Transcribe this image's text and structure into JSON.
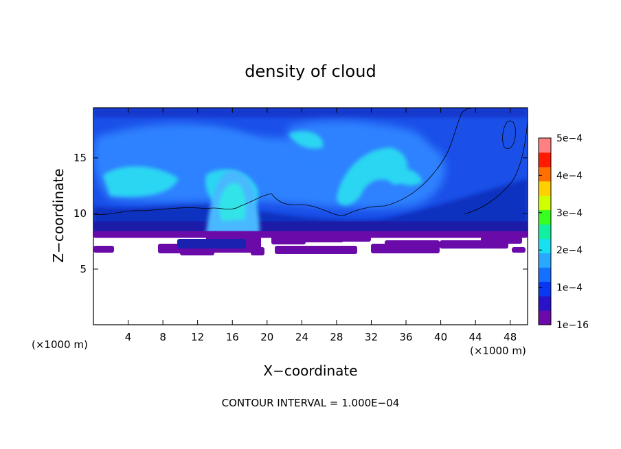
{
  "chart_data": {
    "type": "heatmap",
    "title": "density of cloud",
    "xlabel": "X−coordinate",
    "ylabel": "Z−coordinate",
    "x_unit": "(×1000 m)",
    "y_unit": "(×1000 m)",
    "xlim": [
      0,
      50
    ],
    "ylim": [
      0,
      19.5
    ],
    "x_ticks": [
      4,
      8,
      12,
      16,
      20,
      24,
      28,
      32,
      36,
      40,
      44,
      48
    ],
    "y_ticks": [
      5,
      10,
      15
    ],
    "colorbar": {
      "min_label": "1e−16",
      "tick_values": [
        0.0001,
        0.0002,
        0.0003,
        0.0004,
        0.0005
      ],
      "tick_labels": [
        "1e−4",
        "2e−4",
        "3e−4",
        "4e−4",
        "5e−4"
      ],
      "range": [
        0,
        0.0005
      ],
      "colors": [
        "#6a0aa8",
        "#2a12c8",
        "#0a38f0",
        "#1670ff",
        "#28a8ff",
        "#18e0f0",
        "#10f0a0",
        "#38ff20",
        "#d0ff00",
        "#ffd000",
        "#ff7000",
        "#ff1a00",
        "#ff8080"
      ]
    },
    "contour_interval": "CONTOUR INTERVAL = 1.000E−04",
    "cloud_base_km": 8.3,
    "cloud_top_km": 19.5
  }
}
